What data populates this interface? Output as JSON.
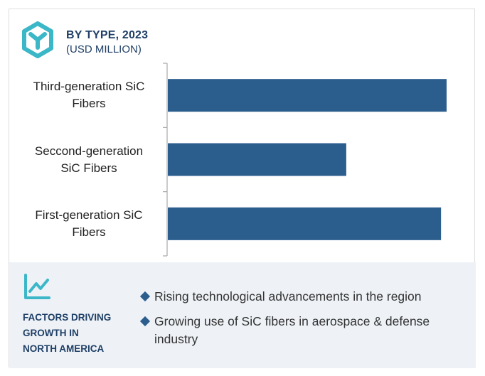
{
  "header": {
    "logo_icon": "hexagon-y-logo-icon",
    "title": "BY TYPE, 2023",
    "subtitle": "(USD MILLION)"
  },
  "colors": {
    "bar": "#2b5d8d",
    "accent": "#3bb7c8",
    "heading": "#1f3f66",
    "factors_background": "#eef2f7"
  },
  "chart_data": {
    "type": "bar",
    "orientation": "horizontal",
    "categories": [
      "Third-generation SiC Fibers",
      "Seccond-generation SiC Fibers",
      "First-generation SiC Fibers"
    ],
    "category_label_lines": [
      [
        "Third-generation SiC",
        "Fibers"
      ],
      [
        "Seccond-generation",
        "SiC Fibers"
      ],
      [
        "First-generation SiC",
        "Fibers"
      ]
    ],
    "values": [
      100,
      64,
      98
    ],
    "value_note": "relative bar lengths; no value axis shown",
    "xlim": [
      0,
      100
    ],
    "grid": false,
    "legend": "none"
  },
  "factors": {
    "icon": "trend-chart-icon",
    "heading_lines": [
      "FACTORS DRIVING",
      "GROWTH IN",
      "NORTH AMERICA"
    ],
    "items": [
      "Rising technological advancements in the region",
      "Growing use of SiC fibers in aerospace & defense industry"
    ]
  }
}
